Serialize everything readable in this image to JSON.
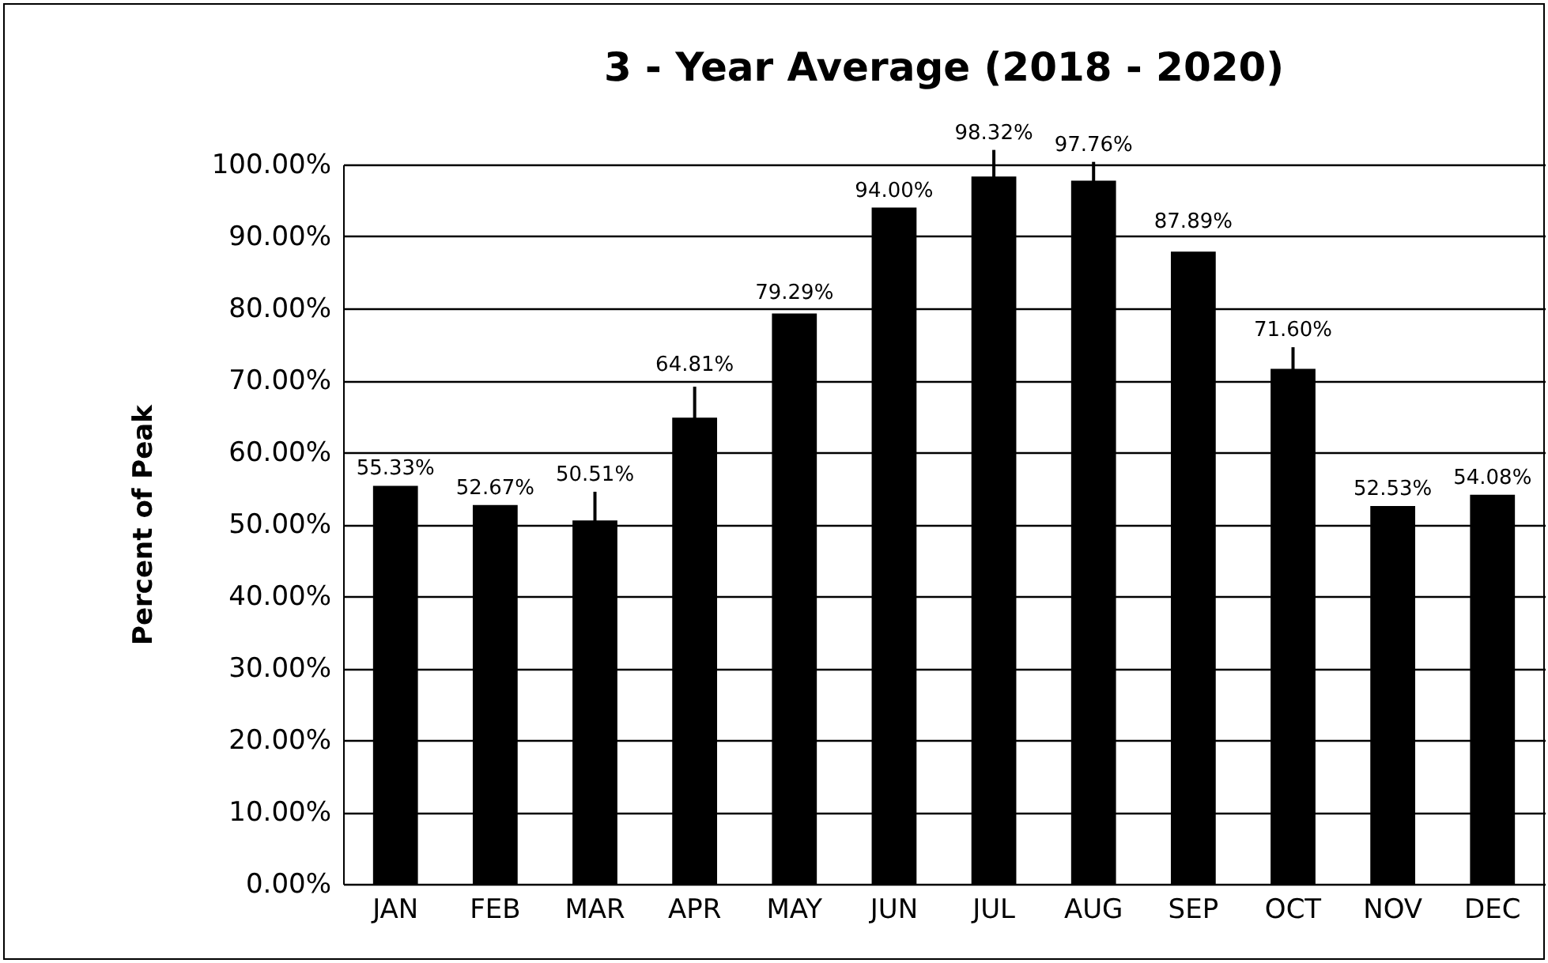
{
  "chart_data": {
    "type": "bar",
    "title": "3 - Year Average (2018 - 2020)",
    "ylabel": "Percent of Peak",
    "categories": [
      "JAN",
      "FEB",
      "MAR",
      "APR",
      "MAY",
      "JUN",
      "JUL",
      "AUG",
      "SEP",
      "OCT",
      "NOV",
      "DEC"
    ],
    "values": [
      55.33,
      52.67,
      50.51,
      64.81,
      79.29,
      94.0,
      98.32,
      97.76,
      87.89,
      71.6,
      52.53,
      54.08
    ],
    "value_labels": [
      "55.33%",
      "52.67%",
      "50.51%",
      "64.81%",
      "79.29%",
      "94.00%",
      "98.32%",
      "97.76%",
      "87.89%",
      "71.60%",
      "52.53%",
      "54.08%"
    ],
    "errors": [
      null,
      null,
      4.0,
      4.3,
      null,
      null,
      3.7,
      2.6,
      null,
      3.0,
      null,
      null
    ],
    "color": "#000000",
    "ylim": [
      0,
      100
    ],
    "yticks": [
      {
        "value": 0,
        "label": "0.00%"
      },
      {
        "value": 10,
        "label": "10.00%"
      },
      {
        "value": 20,
        "label": "20.00%"
      },
      {
        "value": 30,
        "label": "30.00%"
      },
      {
        "value": 40,
        "label": "40.00%"
      },
      {
        "value": 50,
        "label": "50.00%"
      },
      {
        "value": 60,
        "label": "60.00%"
      },
      {
        "value": 70,
        "label": "70.00%"
      },
      {
        "value": 80,
        "label": "80.00%"
      },
      {
        "value": 90,
        "label": "90.00%"
      },
      {
        "value": 100,
        "label": "100.00%"
      }
    ],
    "grid": "y"
  }
}
